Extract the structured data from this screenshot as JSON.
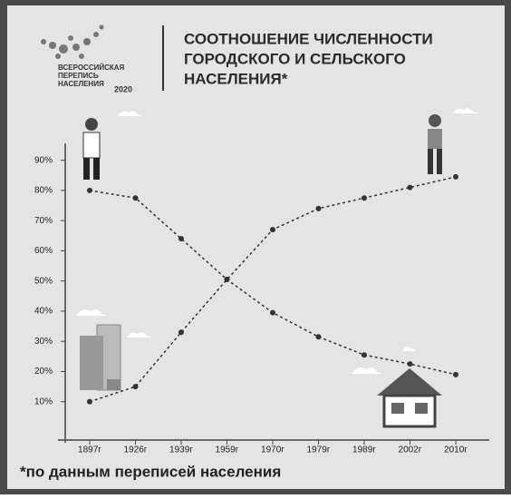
{
  "logo": {
    "lines": [
      "ВСЕРОССИЙСКАЯ",
      "ПЕРЕПИСЬ",
      "НАСЕЛЕНИЯ"
    ],
    "year": "2020"
  },
  "chart_data": {
    "type": "line",
    "title": [
      "СООТНОШЕНИЕ ЧИСЛЕННОСТИ",
      "ГОРОДСКОГО И СЕЛЬСКОГО",
      "НАСЕЛЕНИЯ*"
    ],
    "categories": [
      "1897г",
      "1926г",
      "1939г",
      "1959г",
      "1970г",
      "1979г",
      "1989г",
      "2002г",
      "2010г"
    ],
    "series": [
      {
        "color": "#333333",
        "values": [
          80,
          77.5,
          64,
          50.5,
          39.5,
          31.5,
          25.5,
          22.5,
          19
        ]
      },
      {
        "color": "#333333",
        "values": [
          10,
          15,
          33,
          50.5,
          67,
          74,
          77.5,
          81,
          84.5
        ]
      }
    ],
    "ylim": [
      -3,
      95
    ],
    "yticks": [
      {
        "value": 10,
        "label": "10%"
      },
      {
        "value": 20,
        "label": "20%"
      },
      {
        "value": 30,
        "label": "30%"
      },
      {
        "value": 40,
        "label": "40%"
      },
      {
        "value": 50,
        "label": "50%"
      },
      {
        "value": 60,
        "label": "60%"
      },
      {
        "value": 70,
        "label": "70%"
      },
      {
        "value": 80,
        "label": "80%"
      },
      {
        "value": 90,
        "label": "90%"
      }
    ],
    "grid": false,
    "footnote": "*по данным переписей населения"
  }
}
